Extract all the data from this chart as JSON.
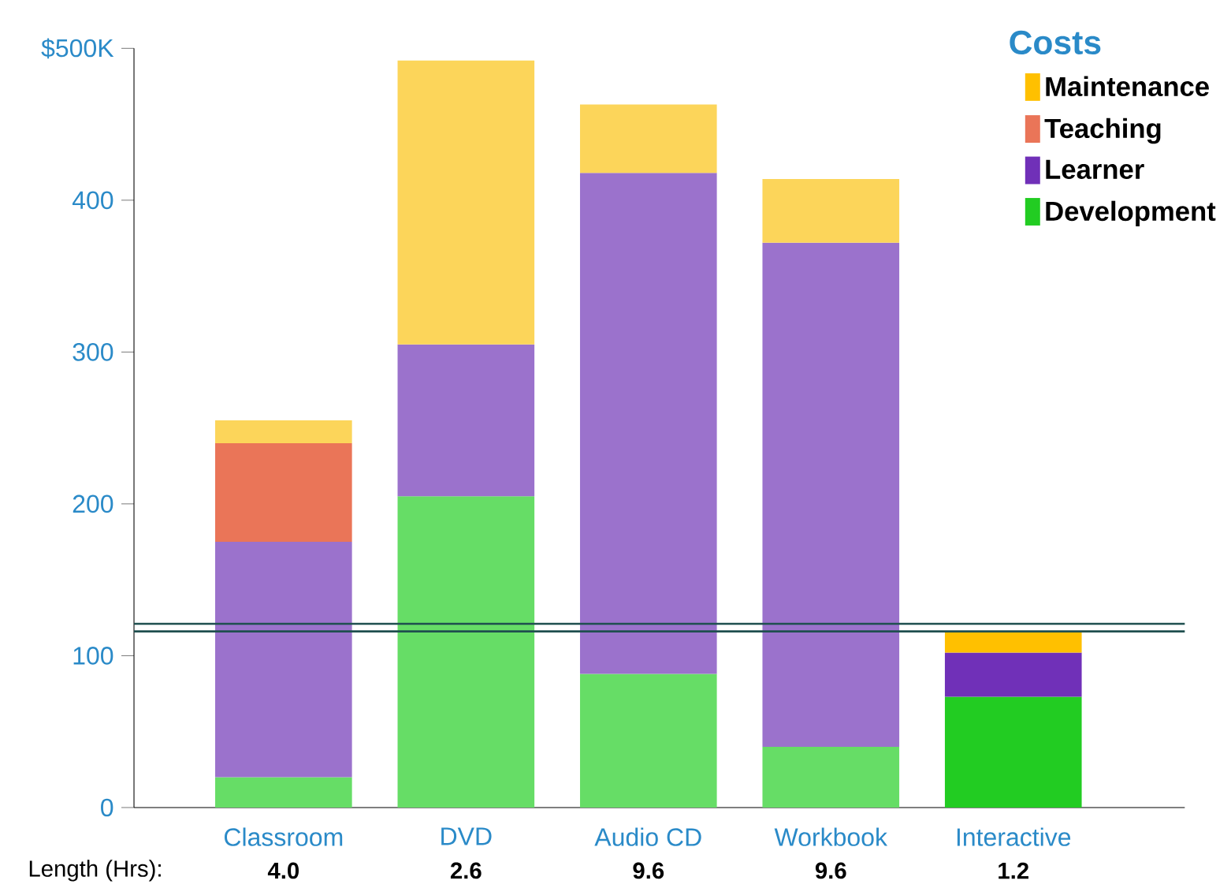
{
  "chart_data": {
    "type": "bar",
    "stacked": true,
    "legend_title": "Costs",
    "legend": "top right",
    "categories": [
      "Classroom",
      "DVD",
      "Audio CD",
      "Workbook",
      "Interactive"
    ],
    "series": [
      {
        "name": "Development",
        "color": "#22cc22",
        "colors": [
          "#66dd66",
          "#66dd66",
          "#66dd66",
          "#66dd66",
          "#22cc22"
        ],
        "values": [
          20,
          205,
          88,
          40,
          73
        ]
      },
      {
        "name": "Learner",
        "color": "#7030b8",
        "colors": [
          "#9b72cc",
          "#9b72cc",
          "#9b72cc",
          "#9b72cc",
          "#7030b8"
        ],
        "values": [
          155,
          100,
          330,
          332,
          29
        ]
      },
      {
        "name": "Teaching",
        "color": "#ea7558",
        "colors": [
          "#ea7558",
          "#ea7558",
          "#ea7558",
          "#ea7558",
          "#e03c00"
        ],
        "values": [
          65,
          0,
          0,
          0,
          0
        ]
      },
      {
        "name": "Maintenance",
        "color": "#ffc000",
        "colors": [
          "#fcd55a",
          "#fcd55a",
          "#fcd55a",
          "#fcd55a",
          "#ffc000"
        ],
        "values": [
          15,
          187,
          45,
          42,
          14
        ]
      }
    ],
    "ylim": [
      0,
      500
    ],
    "yticks": [
      0,
      100,
      200,
      300,
      400,
      {
        "value": 500,
        "label": "$500K"
      }
    ],
    "ref_lines": [
      {
        "axis": "y",
        "value": 121,
        "label": null,
        "color": "#1f4f4f"
      },
      {
        "axis": "y",
        "value": 116,
        "label": null,
        "color": "#1f4f4f"
      }
    ],
    "annotations": [
      "Length (Hrs):",
      "4.0",
      "2.6",
      "9.6",
      "9.6",
      "1.2"
    ]
  }
}
